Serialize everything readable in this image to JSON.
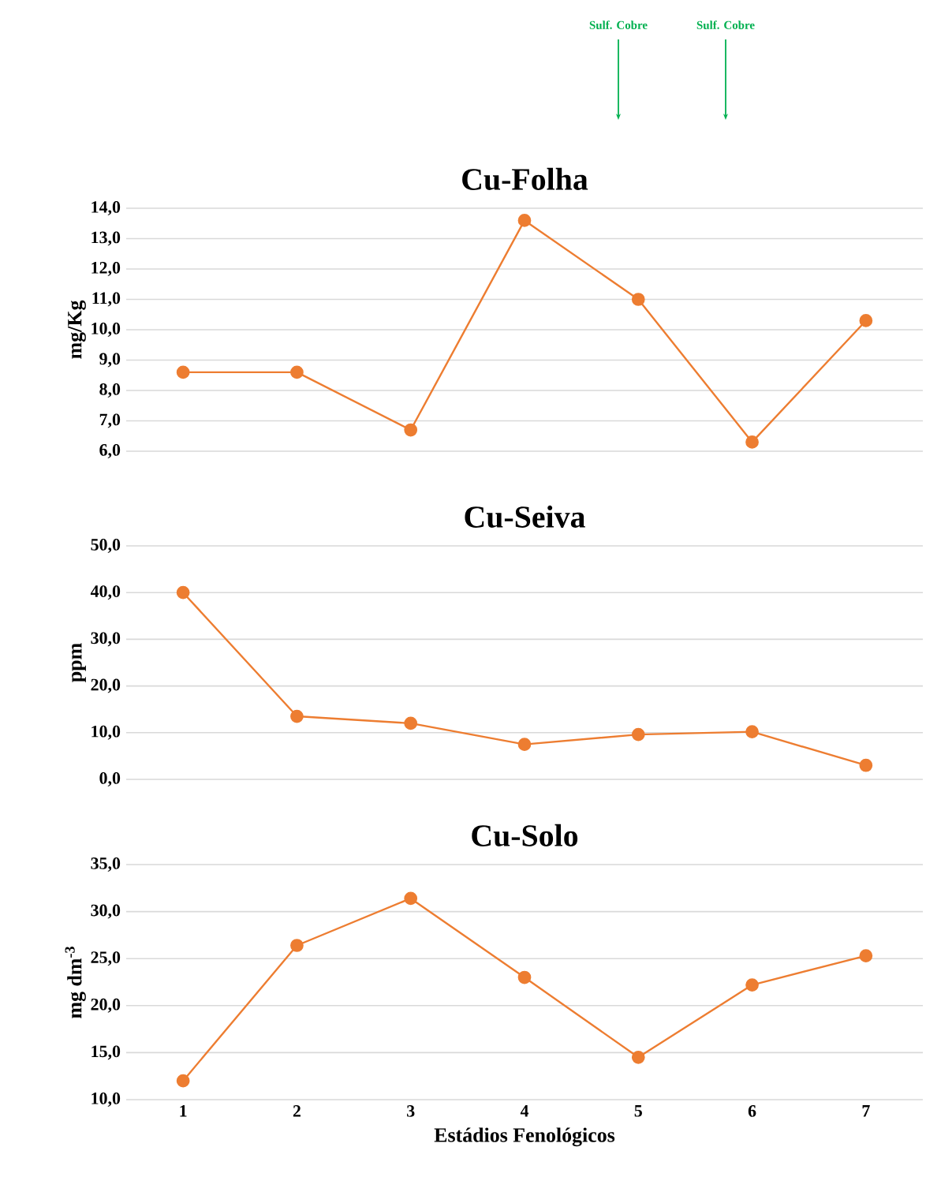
{
  "chart_data": [
    {
      "type": "line",
      "title": "Cu-Folha",
      "ylabel": "mg/Kg",
      "categories": [
        null,
        null,
        null,
        null,
        null,
        null,
        null
      ],
      "tick_labels": "y",
      "grid": "y",
      "marker": "circle",
      "line_style": "solid",
      "series": [
        {
          "color": "#ed7d31",
          "values": [
            8.6,
            8.6,
            6.7,
            13.6,
            11.0,
            6.3,
            10.3
          ]
        }
      ],
      "ylim": [
        6,
        14
      ],
      "yticks": [
        {
          "value": 6,
          "label": "6,0"
        },
        {
          "value": 7,
          "label": "7,0"
        },
        {
          "value": 8,
          "label": "8,0"
        },
        {
          "value": 9,
          "label": "9,0"
        },
        {
          "value": 10,
          "label": "10,0"
        },
        {
          "value": 11,
          "label": "11,0"
        },
        {
          "value": 12,
          "label": "12,0"
        },
        {
          "value": 13,
          "label": "13,0"
        },
        {
          "value": 14,
          "label": "14,0"
        }
      ],
      "annotations": [
        "Sulf. Cobre",
        "Sulf. Cobre"
      ]
    },
    {
      "type": "line",
      "title": "Cu-Seiva",
      "ylabel": "ppm",
      "categories": [
        null,
        null,
        null,
        null,
        null,
        null,
        null
      ],
      "tick_labels": "y",
      "grid": "y",
      "marker": "circle",
      "line_style": "solid",
      "series": [
        {
          "color": "#ed7d31",
          "values": [
            40.0,
            13.5,
            12.0,
            7.5,
            9.6,
            10.2,
            3.0
          ]
        }
      ],
      "ylim": [
        0,
        50
      ],
      "yticks": [
        {
          "value": 0,
          "label": "0,0"
        },
        {
          "value": 10,
          "label": "10,0"
        },
        {
          "value": 20,
          "label": "20,0"
        },
        {
          "value": 30,
          "label": "30,0"
        },
        {
          "value": 40,
          "label": "40,0"
        },
        {
          "value": 50,
          "label": "50,0"
        }
      ]
    },
    {
      "type": "line",
      "title": "Cu-Solo",
      "ylabel": "mg dm$^{-3}$",
      "xlabel": "Estádios Fenológicos",
      "categories": [
        "1",
        "2",
        "3",
        "4",
        "5",
        "6",
        "7"
      ],
      "grid": "y",
      "marker": "circle",
      "line_style": "solid",
      "series": [
        {
          "color": "#ed7d31",
          "values": [
            12.0,
            26.4,
            31.4,
            23.0,
            14.5,
            22.2,
            25.3
          ]
        }
      ],
      "ylim": [
        10,
        35
      ],
      "yticks": [
        {
          "value": 10,
          "label": "10,0"
        },
        {
          "value": 15,
          "label": "15,0"
        },
        {
          "value": 20,
          "label": "20,0"
        },
        {
          "value": 25,
          "label": "25,0"
        },
        {
          "value": 30,
          "label": "30,0"
        },
        {
          "value": 35,
          "label": "35,0"
        }
      ]
    }
  ]
}
